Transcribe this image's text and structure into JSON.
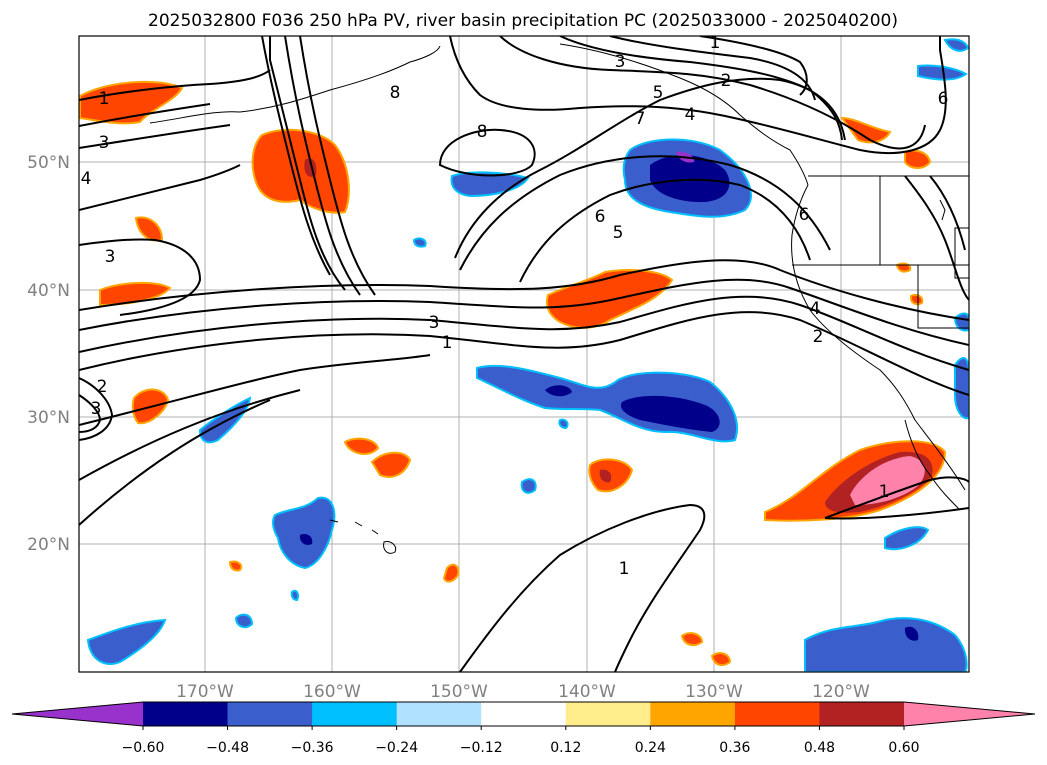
{
  "title": "2025032800 F036 250 hPa PV, river basin precipitation PC (2025033000 - 2025040200)",
  "map": {
    "lat_labels": [
      "50°N",
      "40°N",
      "30°N",
      "20°N"
    ],
    "lon_labels": [
      "170°W",
      "160°W",
      "150°W",
      "140°W",
      "130°W",
      "120°W"
    ],
    "contour_labels": [
      "1",
      "2",
      "3",
      "5",
      "7",
      "8",
      "6",
      "8",
      "4",
      "1",
      "3",
      "3",
      "2",
      "3",
      "4",
      "3",
      "6",
      "5",
      "4",
      "2",
      "1",
      "1",
      "1",
      "6"
    ]
  },
  "colorbar": {
    "colors": [
      "#9932CC",
      "#00008B",
      "#3A5FCD",
      "#00BFFF",
      "#B0E2FF",
      "#FFFFFF",
      "#FFEC8B",
      "#FFA500",
      "#FF4500",
      "#B22222",
      "#FF82AB"
    ],
    "tick_labels": [
      "−0.60",
      "−0.48",
      "−0.36",
      "−0.24",
      "−0.12",
      "0.12",
      "0.24",
      "0.36",
      "0.48",
      "0.60"
    ]
  }
}
